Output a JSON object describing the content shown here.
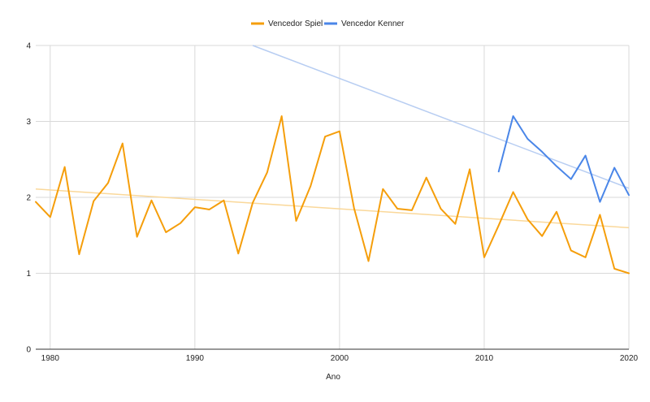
{
  "chart_data": {
    "type": "line",
    "title": "",
    "xlabel": "Ano",
    "ylabel": "",
    "xlim": [
      1979,
      2020
    ],
    "ylim": [
      0,
      4
    ],
    "x_ticks": [
      1980,
      1990,
      2000,
      2010,
      2020
    ],
    "y_ticks": [
      0,
      1,
      2,
      3,
      4
    ],
    "grid": true,
    "legend_position": "top",
    "series": [
      {
        "name": "Vencedor Spiel",
        "color": "#F59E0B",
        "trendline_color": "#FAD89A",
        "trendline": [
          [
            1979,
            2.11
          ],
          [
            2020,
            1.6
          ]
        ],
        "points": [
          [
            1979,
            1.94
          ],
          [
            1980,
            1.74
          ],
          [
            1981,
            2.4
          ],
          [
            1982,
            1.25
          ],
          [
            1983,
            1.95
          ],
          [
            1984,
            2.19
          ],
          [
            1985,
            2.71
          ],
          [
            1986,
            1.48
          ],
          [
            1987,
            1.96
          ],
          [
            1988,
            1.54
          ],
          [
            1989,
            1.66
          ],
          [
            1990,
            1.87
          ],
          [
            1991,
            1.84
          ],
          [
            1992,
            1.96
          ],
          [
            1993,
            1.26
          ],
          [
            1994,
            1.93
          ],
          [
            1995,
            2.33
          ],
          [
            1996,
            3.07
          ],
          [
            1997,
            1.69
          ],
          [
            1998,
            2.15
          ],
          [
            1999,
            2.8
          ],
          [
            2000,
            2.87
          ],
          [
            2001,
            1.86
          ],
          [
            2002,
            1.16
          ],
          [
            2003,
            2.11
          ],
          [
            2004,
            1.85
          ],
          [
            2005,
            1.83
          ],
          [
            2006,
            2.26
          ],
          [
            2007,
            1.85
          ],
          [
            2008,
            1.65
          ],
          [
            2009,
            2.37
          ],
          [
            2010,
            1.21
          ],
          [
            2011,
            1.63
          ],
          [
            2012,
            2.07
          ],
          [
            2013,
            1.71
          ],
          [
            2014,
            1.49
          ],
          [
            2015,
            1.81
          ],
          [
            2016,
            1.3
          ],
          [
            2017,
            1.21
          ],
          [
            2018,
            1.77
          ],
          [
            2019,
            1.06
          ],
          [
            2020,
            1.0
          ]
        ]
      },
      {
        "name": "Vencedor Kenner",
        "color": "#4A86E8",
        "trendline_color": "#B7CDF2",
        "trendline": [
          [
            1994,
            4.0
          ],
          [
            2020,
            2.12
          ]
        ],
        "points": [
          [
            2011,
            2.34
          ],
          [
            2012,
            3.07
          ],
          [
            2013,
            2.77
          ],
          [
            2014,
            2.6
          ],
          [
            2015,
            2.41
          ],
          [
            2016,
            2.24
          ],
          [
            2017,
            2.55
          ],
          [
            2018,
            1.94
          ],
          [
            2019,
            2.39
          ],
          [
            2020,
            2.03
          ]
        ]
      }
    ]
  }
}
